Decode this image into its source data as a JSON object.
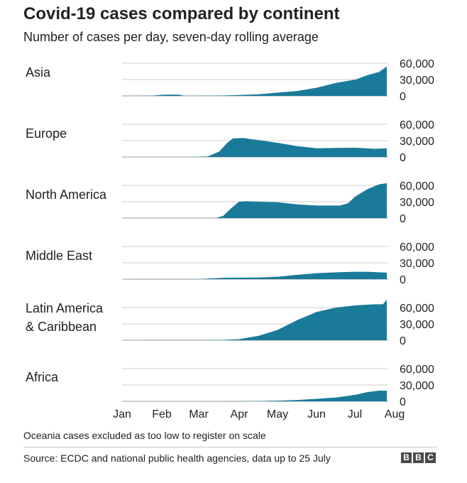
{
  "header": {
    "title": "Covid-19 cases compared by continent",
    "subtitle": "Number of cases per day, seven-day rolling average"
  },
  "footer": {
    "note": "Oceania cases excluded as too low to register on scale",
    "source": "Source: ECDC and national public health agencies, data up to 25 July",
    "logo": [
      "B",
      "B",
      "C"
    ]
  },
  "colors": {
    "area": "#1a7a99",
    "grid": "#cccccc",
    "text": "#222222"
  },
  "chart_data": {
    "type": "area",
    "title": "Covid-19 cases compared by continent",
    "subtitle": "Number of cases per day, seven-day rolling average",
    "x_ticks": [
      "Jan",
      "Feb",
      "Mar",
      "Apr",
      "May",
      "Jun",
      "Jul",
      "Aug"
    ],
    "y_ticks": [
      "60,000",
      "30,000",
      "0"
    ],
    "ylim": [
      0,
      60000
    ],
    "x_unit": "months since 1 Jan 2020",
    "xlim": [
      0,
      7
    ],
    "series": [
      {
        "name": "Asia",
        "label_lines": [
          "Asia"
        ],
        "points": [
          [
            0,
            0
          ],
          [
            0.8,
            500
          ],
          [
            1.0,
            2000
          ],
          [
            1.3,
            2500
          ],
          [
            1.45,
            2200
          ],
          [
            1.6,
            300
          ],
          [
            2.0,
            200
          ],
          [
            2.5,
            500
          ],
          [
            3.0,
            1500
          ],
          [
            3.5,
            3000
          ],
          [
            4.0,
            6000
          ],
          [
            4.5,
            9000
          ],
          [
            5.0,
            15000
          ],
          [
            5.5,
            24000
          ],
          [
            6.0,
            30000
          ],
          [
            6.3,
            38000
          ],
          [
            6.6,
            44000
          ],
          [
            6.8,
            54000
          ],
          [
            6.8,
            57000
          ]
        ]
      },
      {
        "name": "Europe",
        "label_lines": [
          "Europe"
        ],
        "points": [
          [
            0,
            0
          ],
          [
            1.8,
            0
          ],
          [
            2.2,
            1000
          ],
          [
            2.5,
            10000
          ],
          [
            2.7,
            26000
          ],
          [
            2.85,
            34000
          ],
          [
            3.1,
            35000
          ],
          [
            3.5,
            31000
          ],
          [
            4.0,
            26000
          ],
          [
            4.5,
            20000
          ],
          [
            5.0,
            16000
          ],
          [
            5.5,
            16500
          ],
          [
            6.0,
            17000
          ],
          [
            6.5,
            15000
          ],
          [
            6.8,
            16000
          ],
          [
            6.8,
            17000
          ]
        ]
      },
      {
        "name": "North America",
        "label_lines": [
          "North America"
        ],
        "points": [
          [
            0,
            0
          ],
          [
            2.4,
            0
          ],
          [
            2.6,
            4000
          ],
          [
            2.8,
            18000
          ],
          [
            3.0,
            30000
          ],
          [
            3.2,
            31000
          ],
          [
            3.5,
            30000
          ],
          [
            4.0,
            29000
          ],
          [
            4.5,
            25000
          ],
          [
            5.0,
            23000
          ],
          [
            5.6,
            23000
          ],
          [
            5.8,
            27000
          ],
          [
            6.0,
            40000
          ],
          [
            6.3,
            53000
          ],
          [
            6.6,
            62000
          ],
          [
            6.8,
            64000
          ],
          [
            6.8,
            65000
          ]
        ]
      },
      {
        "name": "Middle East",
        "label_lines": [
          "Middle East"
        ],
        "points": [
          [
            0,
            0
          ],
          [
            2.0,
            300
          ],
          [
            2.3,
            1500
          ],
          [
            2.6,
            2500
          ],
          [
            3.0,
            2800
          ],
          [
            3.5,
            3000
          ],
          [
            4.0,
            4500
          ],
          [
            4.5,
            8000
          ],
          [
            5.0,
            11000
          ],
          [
            5.5,
            12500
          ],
          [
            6.0,
            13500
          ],
          [
            6.3,
            13500
          ],
          [
            6.6,
            12500
          ],
          [
            6.8,
            12000
          ],
          [
            6.8,
            12000
          ]
        ]
      },
      {
        "name": "Latin America & Caribbean",
        "label_lines": [
          "Latin America",
          "& Caribbean"
        ],
        "points": [
          [
            0,
            0
          ],
          [
            2.5,
            200
          ],
          [
            3.0,
            2000
          ],
          [
            3.5,
            8000
          ],
          [
            4.0,
            19000
          ],
          [
            4.5,
            37000
          ],
          [
            5.0,
            52000
          ],
          [
            5.5,
            60000
          ],
          [
            6.0,
            64000
          ],
          [
            6.5,
            66000
          ],
          [
            6.7,
            66000
          ],
          [
            6.8,
            74000
          ],
          [
            6.8,
            77000
          ]
        ]
      },
      {
        "name": "Africa",
        "label_lines": [
          "Africa"
        ],
        "points": [
          [
            0,
            0
          ],
          [
            3.0,
            100
          ],
          [
            3.5,
            500
          ],
          [
            4.0,
            1200
          ],
          [
            4.5,
            2500
          ],
          [
            5.0,
            4500
          ],
          [
            5.5,
            7000
          ],
          [
            6.0,
            12000
          ],
          [
            6.3,
            17000
          ],
          [
            6.6,
            19500
          ],
          [
            6.8,
            19500
          ],
          [
            6.8,
            19500
          ]
        ]
      }
    ]
  }
}
